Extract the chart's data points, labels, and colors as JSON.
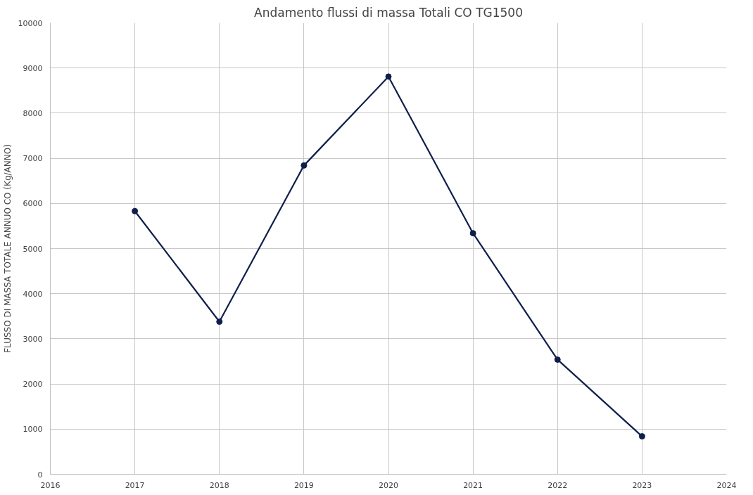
{
  "chart_data": {
    "type": "line",
    "title": "Andamento flussi di massa Totali CO TG1500",
    "ylabel": "FLUSSO DI MASSA TOTALE ANNUO CO (Kg/ANNO)",
    "x": [
      2017,
      2018,
      2019,
      2020,
      2021,
      2022,
      2023
    ],
    "series": [
      {
        "color": "#0f1f4b",
        "values": [
          5830,
          3380,
          6840,
          8810,
          5340,
          2540,
          840
        ]
      }
    ],
    "xlim": [
      2016,
      2024
    ],
    "xticks": [
      2016,
      2017,
      2018,
      2019,
      2020,
      2021,
      2022,
      2023,
      2024
    ],
    "ylim": [
      0,
      10000
    ],
    "yticks": [
      0,
      1000,
      2000,
      3000,
      4000,
      5000,
      6000,
      7000,
      8000,
      9000,
      10000
    ],
    "grid": true,
    "marker": "circle",
    "line_style": "solid"
  }
}
